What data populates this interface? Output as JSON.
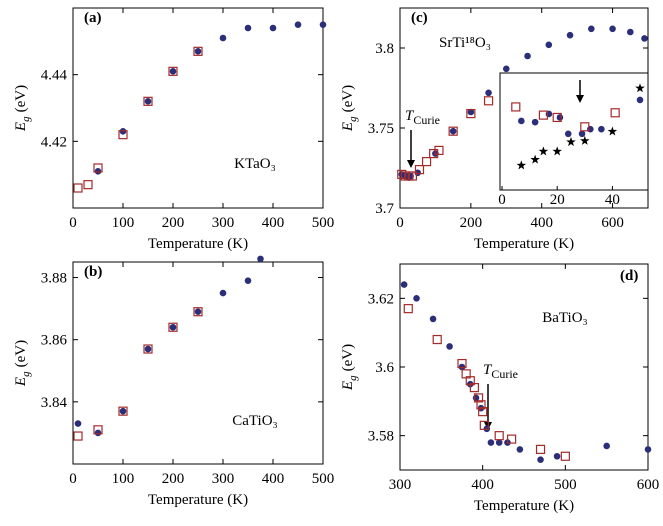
{
  "chart_data": [
    {
      "type": "scatter",
      "label": "(a)",
      "annotation": "KTaO₃",
      "xlabel": "Temperature (K)",
      "ylabel": {
        "symbol": "E",
        "subscript": "g",
        "unit": "(eV)"
      },
      "xlim": [
        0,
        500
      ],
      "xticks": [
        0,
        100,
        200,
        300,
        400,
        500
      ],
      "ylim": [
        4.4,
        4.46
      ],
      "yticks": [
        4.42,
        4.44
      ],
      "series": [
        {
          "marker": "circle",
          "color": "#2b2f7a",
          "x": [
            50,
            100,
            150,
            200,
            250,
            300,
            350,
            400,
            450,
            500
          ],
          "y": [
            4.411,
            4.423,
            4.432,
            4.441,
            4.447,
            4.451,
            4.454,
            4.454,
            4.455,
            4.455
          ]
        },
        {
          "marker": "square",
          "color": "#a52a2a",
          "x": [
            10,
            30,
            50,
            100,
            150,
            200,
            250
          ],
          "y": [
            4.406,
            4.407,
            4.412,
            4.422,
            4.432,
            4.441,
            4.447
          ]
        }
      ]
    },
    {
      "type": "scatter",
      "label": "(b)",
      "annotation": "CaTiO₃",
      "xlabel": "Temperature (K)",
      "ylabel": {
        "symbol": "E",
        "subscript": "g",
        "unit": "(eV)"
      },
      "xlim": [
        0,
        500
      ],
      "xticks": [
        0,
        100,
        200,
        300,
        400,
        500
      ],
      "ylim": [
        3.82,
        3.885
      ],
      "yticks": [
        3.84,
        3.86,
        3.88
      ],
      "series": [
        {
          "marker": "circle",
          "color": "#2b2f7a",
          "x": [
            10,
            50,
            100,
            150,
            200,
            250,
            300,
            350,
            375
          ],
          "y": [
            3.833,
            3.83,
            3.837,
            3.857,
            3.864,
            3.869,
            3.875,
            3.879,
            3.886
          ]
        },
        {
          "marker": "square",
          "color": "#a52a2a",
          "x": [
            10,
            50,
            100,
            150,
            200,
            250
          ],
          "y": [
            3.829,
            3.831,
            3.837,
            3.857,
            3.864,
            3.869
          ]
        }
      ]
    },
    {
      "type": "scatter",
      "label": "(c)",
      "annotation": "SrTi¹⁸O₃",
      "curie_label": {
        "symbol": "T",
        "subscript": "Curie"
      },
      "xlabel": "Temperature (K)",
      "ylabel": {
        "symbol": "E",
        "subscript": "g",
        "unit": "(eV)"
      },
      "xlim": [
        0,
        700
      ],
      "xticks": [
        0,
        200,
        400,
        600
      ],
      "ylim": [
        3.7,
        3.825
      ],
      "yticks": [
        3.7,
        3.75,
        3.8
      ],
      "series": [
        {
          "marker": "circle",
          "color": "#2b2f7a",
          "x": [
            5,
            15,
            20,
            25,
            30,
            50,
            100,
            150,
            200,
            250,
            300,
            360,
            420,
            480,
            540,
            600,
            650,
            690
          ],
          "y": [
            3.721,
            3.72,
            3.72,
            3.719,
            3.72,
            3.722,
            3.734,
            3.748,
            3.76,
            3.772,
            3.787,
            3.795,
            3.802,
            3.808,
            3.812,
            3.812,
            3.81,
            3.806
          ]
        },
        {
          "marker": "square",
          "color": "#a52a2a",
          "x": [
            5,
            15,
            25,
            35,
            55,
            75,
            95,
            110,
            150,
            200,
            250
          ],
          "y": [
            3.721,
            3.72,
            3.72,
            3.72,
            3.724,
            3.729,
            3.734,
            3.736,
            3.748,
            3.759,
            3.767
          ]
        }
      ],
      "inset": {
        "xlim": [
          0,
          50
        ],
        "xticks": [
          0,
          20,
          40
        ],
        "ylim": [
          0,
          1
        ],
        "series": [
          {
            "marker": "circle",
            "color": "#2b2f7a",
            "x": [
              7,
              12,
              17,
              21,
              24,
              29,
              32,
              36,
              50
            ],
            "y": [
              0.59,
              0.58,
              0.65,
              0.62,
              0.48,
              0.48,
              0.52,
              0.52,
              0.77
            ]
          },
          {
            "marker": "square",
            "color": "#a52a2a",
            "x": [
              5,
              15,
              20,
              30,
              41
            ],
            "y": [
              0.71,
              0.64,
              0.62,
              0.54,
              0.66
            ]
          },
          {
            "marker": "star",
            "color": "#000000",
            "x": [
              7,
              12,
              15,
              20,
              25,
              30,
              40,
              50
            ],
            "y": [
              0.21,
              0.26,
              0.33,
              0.33,
              0.41,
              0.42,
              0.5,
              0.87
            ]
          }
        ]
      }
    },
    {
      "type": "scatter",
      "label": "(d)",
      "annotation": "BaTiO₃",
      "curie_label": {
        "symbol": "T",
        "subscript": "Curie"
      },
      "xlabel": "Temperature (K)",
      "ylabel": {
        "symbol": "E",
        "subscript": "g",
        "unit": "(eV)"
      },
      "xlim": [
        300,
        600
      ],
      "xticks": [
        300,
        400,
        500,
        600
      ],
      "ylim": [
        3.57,
        3.63
      ],
      "yticks": [
        3.58,
        3.6,
        3.62
      ],
      "series": [
        {
          "marker": "circle",
          "color": "#2b2f7a",
          "x": [
            305,
            320,
            340,
            360,
            375,
            385,
            392,
            398,
            405,
            410,
            420,
            430,
            445,
            470,
            490,
            550,
            600
          ],
          "y": [
            3.624,
            3.62,
            3.614,
            3.606,
            3.6,
            3.595,
            3.591,
            3.588,
            3.582,
            3.578,
            3.578,
            3.578,
            3.576,
            3.573,
            3.574,
            3.577,
            3.576
          ]
        },
        {
          "marker": "square",
          "color": "#a52a2a",
          "x": [
            310,
            345,
            375,
            380,
            385,
            390,
            395,
            398,
            400,
            402,
            420,
            435,
            470,
            500
          ],
          "y": [
            3.617,
            3.608,
            3.601,
            3.598,
            3.596,
            3.594,
            3.591,
            3.589,
            3.587,
            3.583,
            3.58,
            3.579,
            3.576,
            3.574
          ]
        }
      ]
    }
  ]
}
